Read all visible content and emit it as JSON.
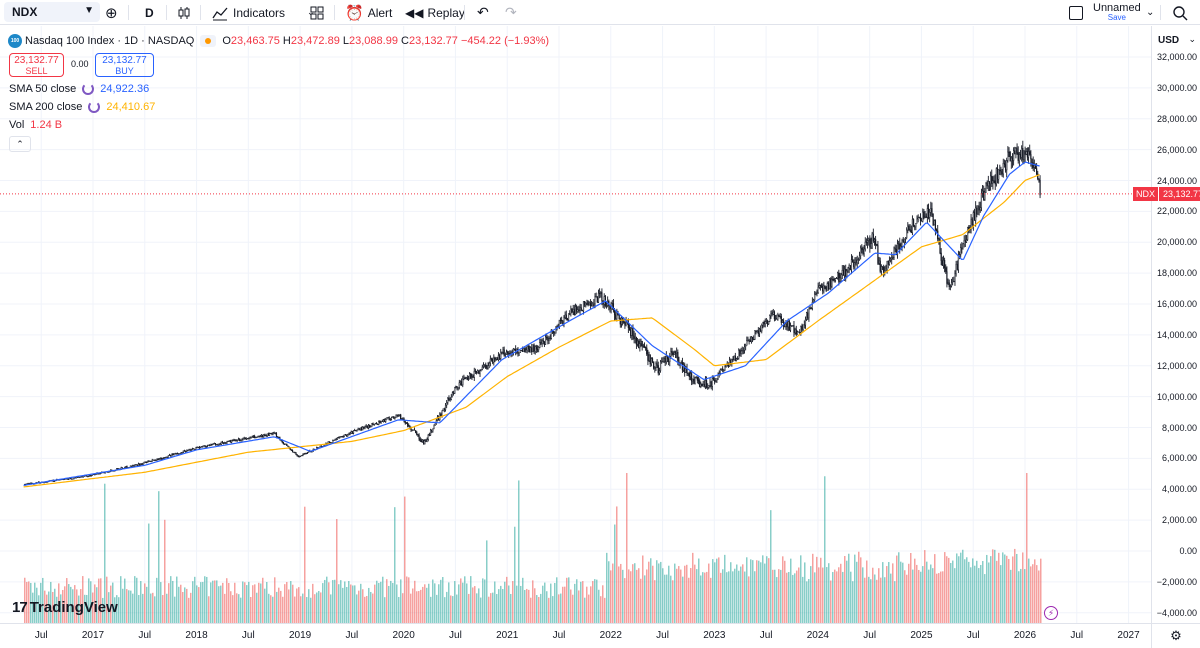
{
  "toolbar": {
    "symbol": "NDX",
    "interval": "D",
    "indicators_label": "Indicators",
    "alert_label": "Alert",
    "replay_label": "Replay",
    "layout_name": "Unnamed",
    "save_label": "Save"
  },
  "legend": {
    "title": "Nasdaq 100 Index · 1D · NASDAQ",
    "logo_text": "100",
    "ohlc": {
      "o_label": "O",
      "o": "23,463.75",
      "h_label": "H",
      "h": "23,472.89",
      "l_label": "L",
      "l": "23,088.99",
      "c_label": "C",
      "c": "23,132.77",
      "change": "−454.22 (−1.93%)"
    },
    "sell_price": "23,132.77",
    "sell_label": "SELL",
    "spread": "0.00",
    "buy_price": "23,132.77",
    "buy_label": "BUY",
    "sma50_label": "SMA 50 close",
    "sma50_value": "24,922.36",
    "sma200_label": "SMA 200 close",
    "sma200_value": "24,410.67",
    "vol_label": "Vol",
    "vol_value": "1.24 B"
  },
  "price_axis": {
    "currency": "USD",
    "labels": [
      "32,000.00",
      "30,000.00",
      "28,000.00",
      "26,000.00",
      "24,000.00",
      "22,000.00",
      "20,000.00",
      "18,000.00",
      "16,000.00",
      "14,000.00",
      "12,000.00",
      "10,000.00",
      "8,000.00",
      "6,000.00",
      "4,000.00",
      "2,000.00",
      "0.00",
      "−2,000.00",
      "−4,000.00"
    ],
    "current_symbol": "NDX",
    "current_value": "23,132.77"
  },
  "time_axis": {
    "labels": [
      "Jul",
      "2017",
      "Jul",
      "2018",
      "Jul",
      "2019",
      "Jul",
      "2020",
      "Jul",
      "2021",
      "Jul",
      "2022",
      "Jul",
      "2023",
      "Jul",
      "2024",
      "Jul",
      "2025",
      "Jul",
      "2026",
      "Jul",
      "2027"
    ]
  },
  "brand": {
    "name": "TradingView"
  },
  "colors": {
    "up": "#26a69a",
    "down": "#ef5350",
    "sma50": "#2962ff",
    "sma200": "#ffb300",
    "price_line": "#f23645"
  },
  "chart_data": {
    "type": "candlestick",
    "title": "Nasdaq 100 Index · 1D · NASDAQ",
    "price_anchors": {
      "t": [
        2016.33,
        2016.9,
        2017.5,
        2018.0,
        2018.75,
        2018.98,
        2019.5,
        2019.95,
        2020.2,
        2020.5,
        2020.95,
        2021.3,
        2021.6,
        2021.9,
        2022.2,
        2022.45,
        2022.6,
        2022.8,
        2022.95,
        2023.2,
        2023.55,
        2023.82,
        2024.0,
        2024.3,
        2024.55,
        2024.6,
        2024.95,
        2025.1,
        2025.27,
        2025.4,
        2025.6,
        2025.85,
        2026.0,
        2026.12,
        2026.15
      ],
      "v": [
        4300,
        4800,
        5700,
        6700,
        7600,
        6100,
        7700,
        8800,
        7000,
        10600,
        12800,
        13200,
        15400,
        16500,
        14200,
        11700,
        12900,
        11000,
        10800,
        12500,
        15300,
        14100,
        16800,
        18300,
        20400,
        18000,
        21500,
        21900,
        16800,
        19800,
        23200,
        25500,
        25900,
        24600,
        23132
      ]
    },
    "sma50_anchors": {
      "t": [
        2016.33,
        2017.5,
        2018.0,
        2018.75,
        2019.1,
        2019.95,
        2020.35,
        2020.95,
        2021.6,
        2021.95,
        2022.4,
        2022.9,
        2023.3,
        2023.7,
        2024.1,
        2024.55,
        2024.75,
        2025.05,
        2025.4,
        2025.6,
        2025.85,
        2026.0,
        2026.15
      ],
      "v": [
        4250,
        5550,
        6550,
        7400,
        6450,
        8500,
        8300,
        12400,
        14900,
        16200,
        13300,
        11100,
        12000,
        14900,
        16700,
        19300,
        19200,
        21300,
        18800,
        21700,
        24400,
        25200,
        24922
      ]
    },
    "sma200_anchors": {
      "t": [
        2016.33,
        2017.5,
        2018.5,
        2019.5,
        2020.0,
        2020.6,
        2021.0,
        2021.5,
        2022.0,
        2022.4,
        2022.8,
        2023.0,
        2023.5,
        2024.0,
        2024.5,
        2025.0,
        2025.4,
        2025.8,
        2026.0,
        2026.15
      ],
      "v": [
        4150,
        5100,
        6400,
        7100,
        7800,
        9300,
        11300,
        13200,
        14900,
        15100,
        13100,
        12000,
        12400,
        14900,
        17300,
        19700,
        20500,
        22600,
        24000,
        24410
      ]
    },
    "y_range": [
      -4800,
      33500
    ],
    "x_range": [
      2016.3,
      2027.3
    ],
    "volume_note": "volume histogram in lower pane, red/green bars"
  }
}
